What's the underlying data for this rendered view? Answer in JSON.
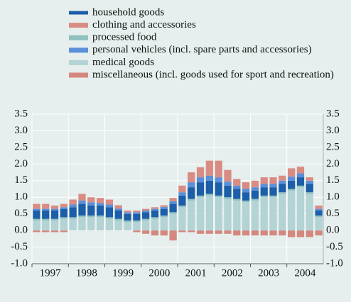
{
  "chart_data": {
    "type": "stacked_bar",
    "categories": [
      "1997",
      null,
      null,
      null,
      "1998",
      null,
      null,
      null,
      "1999",
      null,
      null,
      null,
      "2000",
      null,
      null,
      null,
      "2001",
      null,
      null,
      null,
      "2002",
      null,
      null,
      null,
      "2003",
      null,
      null,
      null,
      "2004",
      null,
      null,
      null
    ],
    "series": [
      {
        "name": "household goods",
        "color": "#1c5ea8",
        "values": [
          0.25,
          0.25,
          0.25,
          0.25,
          0.3,
          0.35,
          0.3,
          0.3,
          0.3,
          0.25,
          0.2,
          0.2,
          0.2,
          0.2,
          0.2,
          0.25,
          0.3,
          0.35,
          0.4,
          0.4,
          0.4,
          0.35,
          0.3,
          0.25,
          0.25,
          0.25,
          0.25,
          0.25,
          0.25,
          0.25,
          0.25,
          0.15
        ]
      },
      {
        "name": "clothing and accessories",
        "color": "#d98c84",
        "values": [
          0.15,
          0.15,
          0.1,
          0.1,
          0.15,
          0.2,
          0.15,
          0.15,
          0.15,
          0.1,
          0.05,
          0.05,
          0.05,
          0.05,
          0.05,
          0.1,
          0.2,
          0.3,
          0.3,
          0.45,
          0.5,
          0.35,
          0.2,
          0.2,
          0.2,
          0.2,
          0.2,
          0.15,
          0.25,
          0.2,
          0.1,
          0.1
        ]
      },
      {
        "name": "processed food",
        "color": "#8fc1bf",
        "values": [
          0.05,
          0.05,
          0.05,
          0.05,
          0.05,
          0.05,
          0.05,
          0.05,
          0.05,
          0.05,
          0.05,
          0.05,
          0.05,
          0.05,
          0.05,
          0.05,
          0.05,
          0.05,
          0.05,
          0.05,
          0.05,
          0.05,
          0.05,
          0.05,
          0.05,
          0.05,
          0.05,
          0.05,
          0.05,
          0.05,
          0.05,
          0.05
        ]
      },
      {
        "name": "personal vehicles (incl. spare parts and accessories)",
        "color": "#5b8fd8",
        "values": [
          0.05,
          0.05,
          0.05,
          0.05,
          0.08,
          0.1,
          0.1,
          0.08,
          0.08,
          0.06,
          0.05,
          0.05,
          0.05,
          0.05,
          0.06,
          0.08,
          0.1,
          0.15,
          0.15,
          0.15,
          0.15,
          0.12,
          0.1,
          0.1,
          0.1,
          0.1,
          0.1,
          0.1,
          0.12,
          0.12,
          0.1,
          0.05
        ]
      },
      {
        "name": "medical goods",
        "color": "#b3d3d5",
        "values": [
          0.3,
          0.3,
          0.3,
          0.35,
          0.35,
          0.4,
          0.4,
          0.4,
          0.35,
          0.3,
          0.25,
          0.25,
          0.3,
          0.35,
          0.4,
          0.5,
          0.7,
          0.9,
          1.0,
          1.05,
          1.0,
          0.95,
          0.9,
          0.85,
          0.9,
          1.0,
          1.0,
          1.1,
          1.2,
          1.3,
          1.1,
          0.4
        ]
      },
      {
        "name": "miscellaneous (incl. goods used for sport and recreation)",
        "color": "#d4877e",
        "values": [
          -0.05,
          -0.05,
          -0.05,
          -0.05,
          0,
          0,
          0,
          0,
          0,
          0,
          0,
          -0.05,
          -0.1,
          -0.15,
          -0.15,
          -0.3,
          -0.05,
          -0.05,
          -0.1,
          -0.1,
          -0.1,
          -0.1,
          -0.15,
          -0.15,
          -0.15,
          -0.15,
          -0.15,
          -0.15,
          -0.2,
          -0.2,
          -0.2,
          -0.15
        ]
      }
    ],
    "ylim": [
      -1.0,
      3.5
    ],
    "yticks": [
      {
        "value": -1,
        "label": "-1.0"
      },
      {
        "value": -0.5,
        "label": "-0.5"
      },
      {
        "value": 0,
        "label": "0.0"
      },
      0.5,
      {
        "value": 1,
        "label": "1.0"
      },
      1.5,
      {
        "value": 2,
        "label": "2.0"
      },
      2.5,
      {
        "value": 3,
        "label": "3.0"
      },
      3.5
    ],
    "grid": true
  }
}
